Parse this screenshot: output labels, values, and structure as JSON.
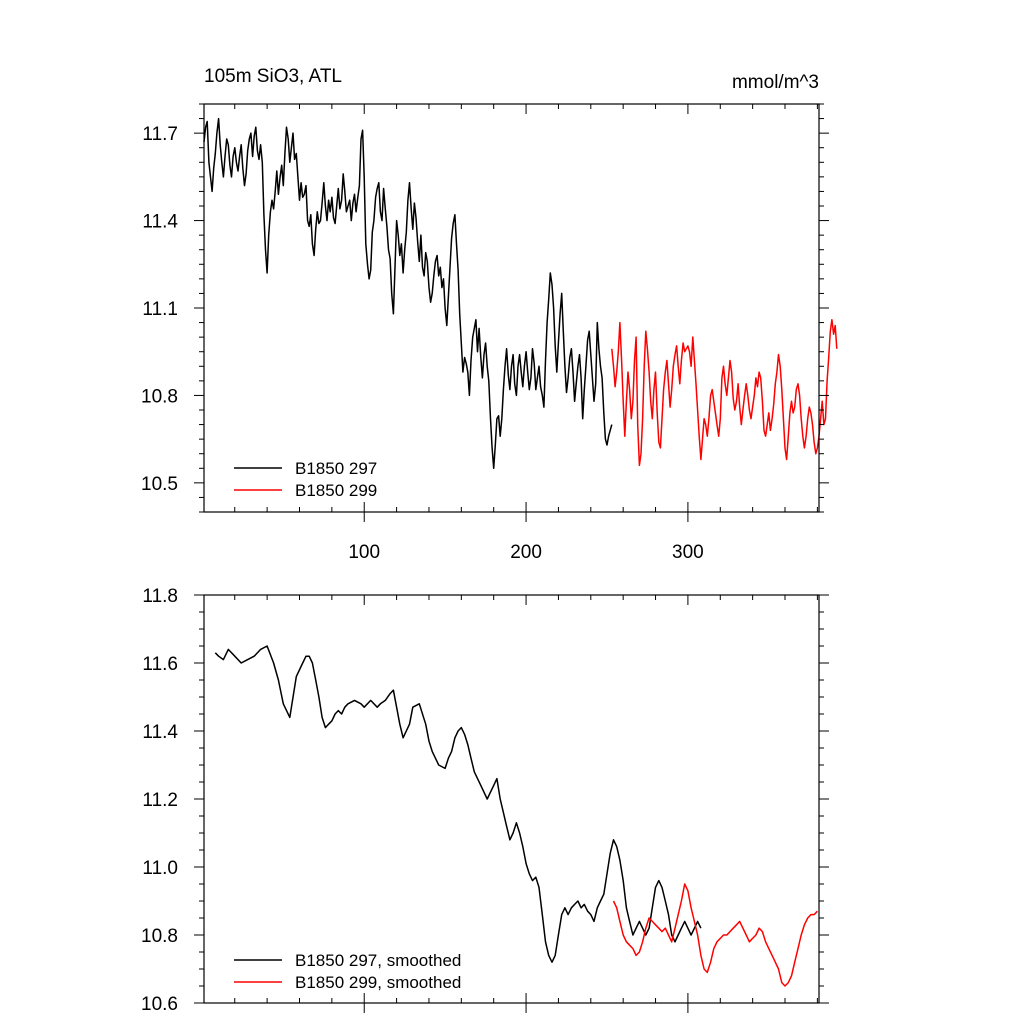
{
  "chart_data": [
    {
      "type": "line",
      "title_left": "105m SiO3, ATL",
      "title_right": "mmol/m^3",
      "xlim": [
        1,
        381
      ],
      "ylim": [
        10.4,
        11.8
      ],
      "xticks": [
        100,
        200,
        300
      ],
      "xtick_labels": [
        "100",
        "200",
        "300"
      ],
      "yticks": [
        10.5,
        10.8,
        11.1,
        11.4,
        11.7
      ],
      "ytick_labels": [
        "10.5",
        "10.8",
        "11.1",
        "11.4",
        "11.7"
      ],
      "legend": [
        "B1850 297",
        "B1850 299"
      ],
      "legend_position": "bottom-left",
      "series": [
        {
          "name": "B1850 297",
          "color": "#000000",
          "x_start": 1,
          "values": [
            11.67,
            11.72,
            11.74,
            11.6,
            11.55,
            11.5,
            11.58,
            11.63,
            11.7,
            11.75,
            11.66,
            11.6,
            11.55,
            11.62,
            11.68,
            11.66,
            11.59,
            11.55,
            11.62,
            11.65,
            11.6,
            11.57,
            11.62,
            11.66,
            11.58,
            11.52,
            11.56,
            11.64,
            11.68,
            11.7,
            11.62,
            11.69,
            11.72,
            11.64,
            11.61,
            11.66,
            11.6,
            11.42,
            11.3,
            11.22,
            11.35,
            11.43,
            11.47,
            11.44,
            11.5,
            11.57,
            11.49,
            11.55,
            11.59,
            11.52,
            11.63,
            11.72,
            11.68,
            11.6,
            11.65,
            11.7,
            11.61,
            11.63,
            11.55,
            11.47,
            11.53,
            11.48,
            11.49,
            11.52,
            11.4,
            11.38,
            11.42,
            11.32,
            11.28,
            11.37,
            11.43,
            11.39,
            11.4,
            11.46,
            11.53,
            11.45,
            11.4,
            11.47,
            11.43,
            11.48,
            11.41,
            11.39,
            11.45,
            11.51,
            11.44,
            11.47,
            11.56,
            11.5,
            11.43,
            11.45,
            11.47,
            11.4,
            11.46,
            11.49,
            11.43,
            11.48,
            11.52,
            11.68,
            11.71,
            11.55,
            11.32,
            11.25,
            11.2,
            11.23,
            11.36,
            11.4,
            11.48,
            11.51,
            11.53,
            11.43,
            11.4,
            11.51,
            11.44,
            11.38,
            11.3,
            11.27,
            11.15,
            11.08,
            11.24,
            11.4,
            11.35,
            11.28,
            11.32,
            11.22,
            11.3,
            11.36,
            11.47,
            11.53,
            11.44,
            11.37,
            11.46,
            11.41,
            11.33,
            11.26,
            11.35,
            11.24,
            11.21,
            11.29,
            11.26,
            11.17,
            11.12,
            11.15,
            11.21,
            11.26,
            11.28,
            11.21,
            11.24,
            11.17,
            11.2,
            11.1,
            11.04,
            11.14,
            11.24,
            11.34,
            11.39,
            11.42,
            11.32,
            11.23,
            11.08,
            10.98,
            10.88,
            10.93,
            10.91,
            10.88,
            10.8,
            10.92,
            11.0,
            11.03,
            11.06,
            10.95,
            11.03,
            10.93,
            10.86,
            10.94,
            10.98,
            10.9,
            10.85,
            10.72,
            10.62,
            10.55,
            10.63,
            10.72,
            10.73,
            10.66,
            10.72,
            10.82,
            10.9,
            10.96,
            10.87,
            10.82,
            10.9,
            10.94,
            10.84,
            10.8,
            10.9,
            10.94,
            10.88,
            10.83,
            10.9,
            10.95,
            10.88,
            10.82,
            10.86,
            10.96,
            10.91,
            10.82,
            10.86,
            10.9,
            10.83,
            10.8,
            10.76,
            10.92,
            11.05,
            11.13,
            11.22,
            11.18,
            11.1,
            10.97,
            10.88,
            10.98,
            11.08,
            11.15,
            11.02,
            10.9,
            10.81,
            10.86,
            10.93,
            10.96,
            10.88,
            10.78,
            10.84,
            10.9,
            10.94,
            10.86,
            10.72,
            10.82,
            10.9,
            10.99,
            11.02,
            10.94,
            10.86,
            10.78,
            10.84,
            11.05,
            10.96,
            10.9,
            10.86,
            10.74,
            10.65,
            10.63,
            10.66,
            10.68,
            10.7
          ]
        },
        {
          "name": "B1850 299",
          "color": "#ff0000",
          "x_start": 253,
          "values": [
            10.96,
            10.9,
            10.83,
            10.88,
            10.95,
            11.05,
            10.92,
            10.78,
            10.66,
            10.78,
            10.88,
            10.82,
            10.72,
            10.78,
            10.92,
            11.0,
            10.7,
            10.56,
            10.6,
            10.72,
            10.9,
            11.02,
            10.96,
            10.88,
            10.78,
            10.72,
            10.82,
            10.88,
            10.74,
            10.64,
            10.62,
            10.72,
            10.82,
            10.88,
            10.92,
            10.84,
            10.76,
            10.82,
            10.9,
            10.94,
            10.97,
            10.9,
            10.84,
            10.92,
            10.98,
            10.95,
            10.96,
            10.97,
            10.95,
            10.9,
            11.0,
            10.92,
            10.84,
            10.75,
            10.66,
            10.58,
            10.65,
            10.72,
            10.7,
            10.66,
            10.72,
            10.8,
            10.82,
            10.78,
            10.74,
            10.7,
            10.66,
            10.72,
            10.86,
            10.9,
            10.84,
            10.8,
            10.86,
            10.92,
            10.88,
            10.79,
            10.75,
            10.78,
            10.84,
            10.76,
            10.7,
            10.75,
            10.8,
            10.84,
            10.8,
            10.75,
            10.72,
            10.76,
            10.8,
            10.86,
            10.83,
            10.88,
            10.86,
            10.78,
            10.68,
            10.66,
            10.7,
            10.74,
            10.68,
            10.72,
            10.77,
            10.84,
            10.88,
            10.94,
            10.9,
            10.82,
            10.72,
            10.62,
            10.58,
            10.66,
            10.74,
            10.78,
            10.74,
            10.76,
            10.82,
            10.84,
            10.8,
            10.72,
            10.66,
            10.62,
            10.66,
            10.72,
            10.76,
            10.74,
            10.7,
            10.64,
            10.6,
            10.62,
            10.66,
            10.72,
            10.78,
            10.7,
            10.72,
            10.85,
            10.93,
            11.02,
            11.06,
            11.01,
            11.04,
            10.96
          ]
        }
      ]
    },
    {
      "type": "line",
      "xlim": [
        1,
        381
      ],
      "ylim": [
        10.6,
        11.8
      ],
      "xticks": [
        100,
        200,
        300
      ],
      "yticks": [
        10.6,
        10.8,
        11.0,
        11.2,
        11.4,
        11.6,
        11.8
      ],
      "ytick_labels": [
        "10.6",
        "10.8",
        "11.0",
        "11.2",
        "11.4",
        "11.6",
        "11.8"
      ],
      "legend": [
        "B1850 297, smoothed",
        "B1850 299, smoothed"
      ],
      "legend_position": "bottom-left",
      "series": [
        {
          "name": "B1850 297, smoothed",
          "color": "#000000",
          "x": [
            8,
            10,
            13,
            16,
            20,
            24,
            28,
            32,
            36,
            40,
            44,
            47,
            50,
            54,
            58,
            62,
            64,
            66,
            68,
            70,
            72,
            74,
            76,
            78,
            80,
            82,
            84,
            86,
            88,
            90,
            94,
            98,
            100,
            104,
            108,
            110,
            113,
            116,
            118,
            120,
            122,
            124,
            128,
            130,
            134,
            138,
            140,
            142,
            146,
            150,
            152,
            154,
            156,
            158,
            160,
            162,
            164,
            166,
            168,
            172,
            176,
            180,
            182,
            184,
            186,
            188,
            190,
            192,
            194,
            196,
            198,
            200,
            202,
            204,
            206,
            208,
            210,
            212,
            214,
            216,
            218,
            220,
            222,
            224,
            226,
            228,
            230,
            232,
            234,
            236,
            238,
            240,
            242,
            244,
            246,
            248,
            250,
            252,
            254,
            256,
            258,
            260,
            262,
            264,
            266,
            268,
            270,
            272,
            274,
            276,
            278,
            280,
            282,
            284,
            286,
            288,
            290,
            292,
            294,
            296,
            298,
            300,
            302,
            304,
            306,
            308
          ],
          "values": [
            11.63,
            11.62,
            11.61,
            11.64,
            11.62,
            11.6,
            11.61,
            11.62,
            11.64,
            11.65,
            11.6,
            11.55,
            11.48,
            11.44,
            11.56,
            11.6,
            11.62,
            11.62,
            11.6,
            11.55,
            11.5,
            11.44,
            11.41,
            11.42,
            11.43,
            11.45,
            11.46,
            11.45,
            11.47,
            11.48,
            11.49,
            11.48,
            11.47,
            11.49,
            11.47,
            11.48,
            11.49,
            11.51,
            11.52,
            11.47,
            11.42,
            11.38,
            11.42,
            11.47,
            11.48,
            11.42,
            11.37,
            11.34,
            11.3,
            11.29,
            11.32,
            11.34,
            11.38,
            11.4,
            11.41,
            11.39,
            11.36,
            11.32,
            11.28,
            11.24,
            11.2,
            11.24,
            11.26,
            11.2,
            11.16,
            11.12,
            11.08,
            11.1,
            11.13,
            11.1,
            11.06,
            11.01,
            10.98,
            10.96,
            10.97,
            10.94,
            10.86,
            10.78,
            10.74,
            10.72,
            10.74,
            10.8,
            10.86,
            10.88,
            10.86,
            10.88,
            10.89,
            10.9,
            10.88,
            10.89,
            10.87,
            10.86,
            10.84,
            10.88,
            10.9,
            10.92,
            10.98,
            11.04,
            11.08,
            11.06,
            11.02,
            10.96,
            10.88,
            10.84,
            10.8,
            10.82,
            10.84,
            10.82,
            10.8,
            10.82,
            10.88,
            10.94,
            10.96,
            10.94,
            10.9,
            10.86,
            10.8,
            10.78,
            10.8,
            10.82,
            10.84,
            10.82,
            10.8,
            10.82,
            10.84,
            10.82
          ]
        },
        {
          "name": "B1850 299, smoothed",
          "color": "#ff0000",
          "x": [
            254,
            256,
            258,
            260,
            262,
            264,
            266,
            268,
            270,
            272,
            274,
            276,
            278,
            280,
            282,
            284,
            286,
            288,
            290,
            292,
            294,
            296,
            298,
            300,
            302,
            304,
            306,
            308,
            310,
            312,
            314,
            316,
            318,
            320,
            322,
            324,
            326,
            328,
            330,
            332,
            334,
            336,
            338,
            340,
            342,
            344,
            346,
            348,
            350,
            352,
            354,
            356,
            358,
            360,
            362,
            364,
            366,
            368,
            370,
            372,
            374,
            376,
            378,
            380
          ],
          "values": [
            10.9,
            10.88,
            10.84,
            10.8,
            10.78,
            10.77,
            10.76,
            10.74,
            10.75,
            10.78,
            10.82,
            10.85,
            10.84,
            10.83,
            10.82,
            10.81,
            10.82,
            10.8,
            10.78,
            10.82,
            10.86,
            10.9,
            10.95,
            10.93,
            10.88,
            10.84,
            10.8,
            10.74,
            10.7,
            10.69,
            10.72,
            10.76,
            10.78,
            10.79,
            10.8,
            10.8,
            10.81,
            10.82,
            10.83,
            10.84,
            10.82,
            10.8,
            10.78,
            10.79,
            10.8,
            10.82,
            10.81,
            10.78,
            10.76,
            10.74,
            10.72,
            10.7,
            10.66,
            10.65,
            10.66,
            10.68,
            10.72,
            10.76,
            10.8,
            10.83,
            10.85,
            10.86,
            10.86,
            10.87
          ]
        }
      ]
    }
  ]
}
